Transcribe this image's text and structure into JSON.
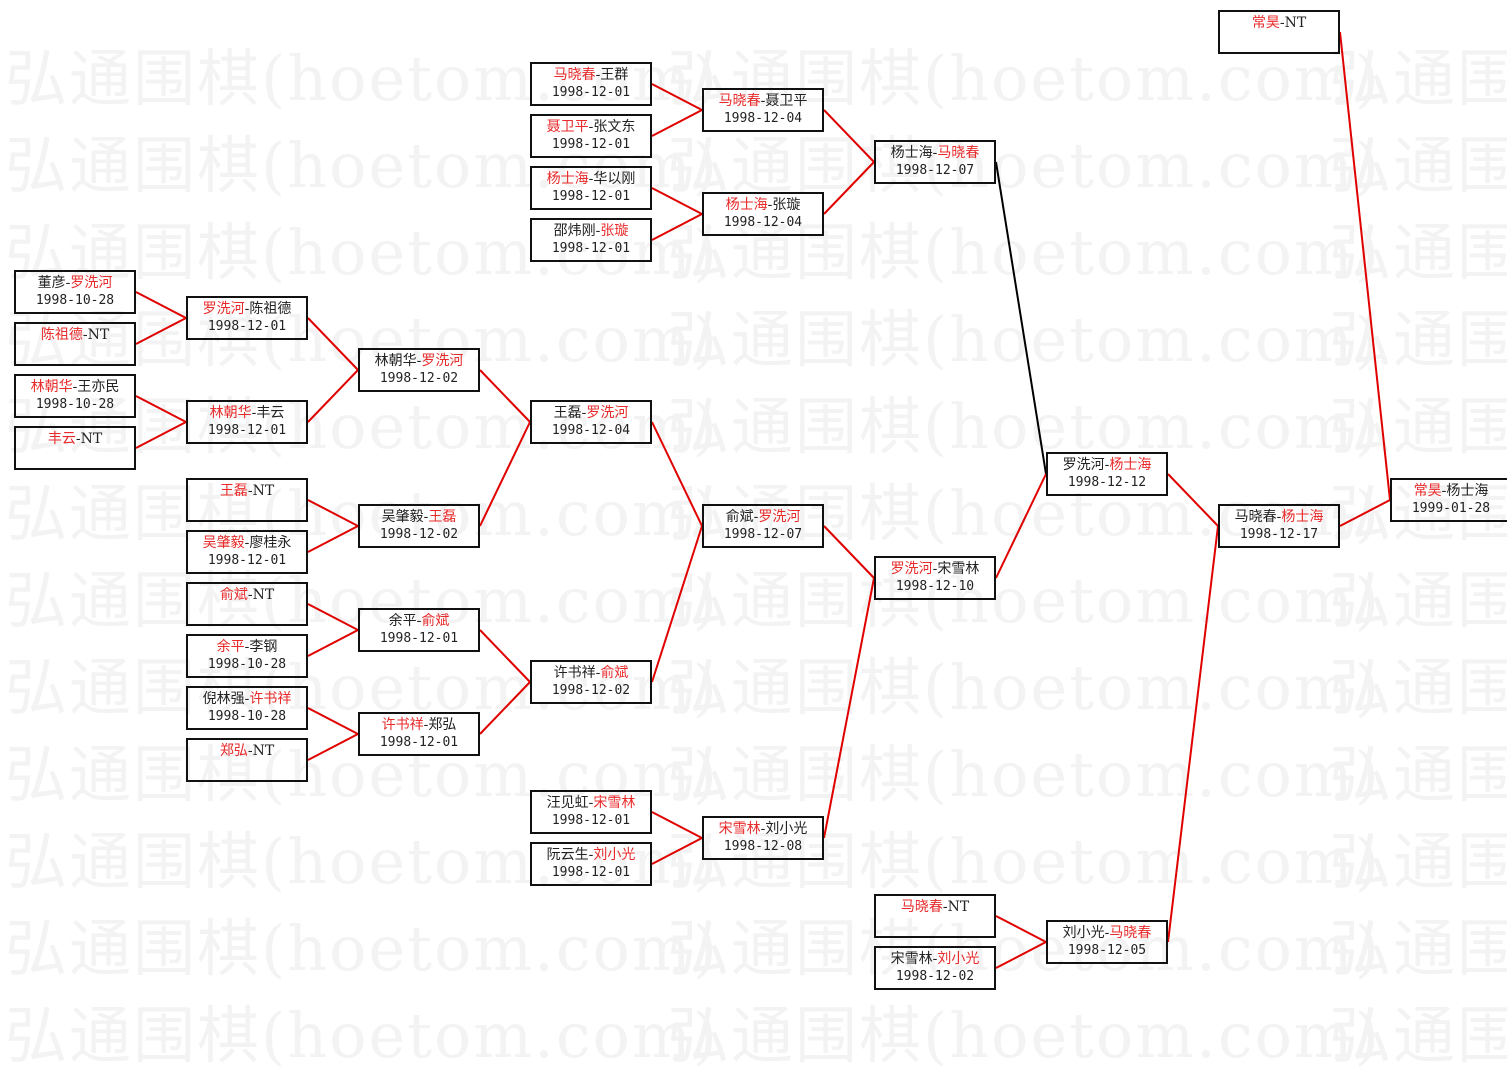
{
  "watermark": "弘通围棋(hoetom.com)",
  "colors": {
    "winner_text": "#e82a2a",
    "advance_line": "#e00000",
    "other_line": "#000000",
    "box_border": "#111111"
  },
  "matches": [
    {
      "p1": "董彦",
      "p2": "罗洗河",
      "winner": 2,
      "date": "1998-10-28"
    },
    {
      "p1": "陈祖德",
      "p2": "NT",
      "winner": 1,
      "date": ""
    },
    {
      "p1": "林朝华",
      "p2": "王亦民",
      "winner": 1,
      "date": "1998-10-28"
    },
    {
      "p1": "丰云",
      "p2": "NT",
      "winner": 1,
      "date": ""
    },
    {
      "p1": "罗洗河",
      "p2": "陈祖德",
      "winner": 1,
      "date": "1998-12-01"
    },
    {
      "p1": "林朝华",
      "p2": "丰云",
      "winner": 1,
      "date": "1998-12-01"
    },
    {
      "p1": "王磊",
      "p2": "NT",
      "winner": 1,
      "date": ""
    },
    {
      "p1": "吴肇毅",
      "p2": "廖桂永",
      "winner": 1,
      "date": "1998-12-01"
    },
    {
      "p1": "俞斌",
      "p2": "NT",
      "winner": 1,
      "date": ""
    },
    {
      "p1": "余平",
      "p2": "李钢",
      "winner": 1,
      "date": "1998-10-28"
    },
    {
      "p1": "倪林强",
      "p2": "许书祥",
      "winner": 2,
      "date": "1998-10-28"
    },
    {
      "p1": "郑弘",
      "p2": "NT",
      "winner": 1,
      "date": ""
    },
    {
      "p1": "林朝华",
      "p2": "罗洗河",
      "winner": 2,
      "date": "1998-12-02"
    },
    {
      "p1": "吴肇毅",
      "p2": "王磊",
      "winner": 2,
      "date": "1998-12-02"
    },
    {
      "p1": "余平",
      "p2": "俞斌",
      "winner": 2,
      "date": "1998-12-01"
    },
    {
      "p1": "许书祥",
      "p2": "郑弘",
      "winner": 1,
      "date": "1998-12-01"
    },
    {
      "p1": "马晓春",
      "p2": "王群",
      "winner": 1,
      "date": "1998-12-01"
    },
    {
      "p1": "聂卫平",
      "p2": "张文东",
      "winner": 1,
      "date": "1998-12-01"
    },
    {
      "p1": "杨士海",
      "p2": "华以刚",
      "winner": 1,
      "date": "1998-12-01"
    },
    {
      "p1": "邵炜刚",
      "p2": "张璇",
      "winner": 2,
      "date": "1998-12-01"
    },
    {
      "p1": "王磊",
      "p2": "罗洗河",
      "winner": 2,
      "date": "1998-12-04"
    },
    {
      "p1": "许书祥",
      "p2": "俞斌",
      "winner": 2,
      "date": "1998-12-02"
    },
    {
      "p1": "汪见虹",
      "p2": "宋雪林",
      "winner": 2,
      "date": "1998-12-01"
    },
    {
      "p1": "阮云生",
      "p2": "刘小光",
      "winner": 2,
      "date": "1998-12-01"
    },
    {
      "p1": "马晓春",
      "p2": "聂卫平",
      "winner": 1,
      "date": "1998-12-04"
    },
    {
      "p1": "杨士海",
      "p2": "张璇",
      "winner": 1,
      "date": "1998-12-04"
    },
    {
      "p1": "俞斌",
      "p2": "罗洗河",
      "winner": 2,
      "date": "1998-12-07"
    },
    {
      "p1": "宋雪林",
      "p2": "刘小光",
      "winner": 1,
      "date": "1998-12-08"
    },
    {
      "p1": "杨士海",
      "p2": "马晓春",
      "winner": 2,
      "date": "1998-12-07"
    },
    {
      "p1": "罗洗河",
      "p2": "宋雪林",
      "winner": 1,
      "date": "1998-12-10"
    },
    {
      "p1": "马晓春",
      "p2": "NT",
      "winner": 1,
      "date": ""
    },
    {
      "p1": "宋雪林",
      "p2": "刘小光",
      "winner": 2,
      "date": "1998-12-02"
    },
    {
      "p1": "罗洗河",
      "p2": "杨士海",
      "winner": 2,
      "date": "1998-12-12"
    },
    {
      "p1": "刘小光",
      "p2": "马晓春",
      "winner": 2,
      "date": "1998-12-05"
    },
    {
      "p1": "常昊",
      "p2": "NT",
      "winner": 1,
      "date": ""
    },
    {
      "p1": "马晓春",
      "p2": "杨士海",
      "winner": 2,
      "date": "1998-12-17"
    },
    {
      "p1": "常昊",
      "p2": "杨士海",
      "winner": 1,
      "date": "1999-01-28"
    }
  ],
  "links": [
    {
      "from": 0,
      "to": 4,
      "color": "red"
    },
    {
      "from": 1,
      "to": 4,
      "color": "red"
    },
    {
      "from": 2,
      "to": 5,
      "color": "red"
    },
    {
      "from": 3,
      "to": 5,
      "color": "red"
    },
    {
      "from": 4,
      "to": 12,
      "color": "red"
    },
    {
      "from": 5,
      "to": 12,
      "color": "red"
    },
    {
      "from": 6,
      "to": 13,
      "color": "red"
    },
    {
      "from": 7,
      "to": 13,
      "color": "red"
    },
    {
      "from": 8,
      "to": 14,
      "color": "red"
    },
    {
      "from": 9,
      "to": 14,
      "color": "red"
    },
    {
      "from": 10,
      "to": 15,
      "color": "red"
    },
    {
      "from": 11,
      "to": 15,
      "color": "red"
    },
    {
      "from": 12,
      "to": 20,
      "color": "red"
    },
    {
      "from": 13,
      "to": 20,
      "color": "red"
    },
    {
      "from": 14,
      "to": 21,
      "color": "red"
    },
    {
      "from": 15,
      "to": 21,
      "color": "red"
    },
    {
      "from": 16,
      "to": 24,
      "color": "red"
    },
    {
      "from": 17,
      "to": 24,
      "color": "red"
    },
    {
      "from": 18,
      "to": 25,
      "color": "red"
    },
    {
      "from": 19,
      "to": 25,
      "color": "red"
    },
    {
      "from": 20,
      "to": 26,
      "color": "red"
    },
    {
      "from": 21,
      "to": 26,
      "color": "red"
    },
    {
      "from": 22,
      "to": 27,
      "color": "red"
    },
    {
      "from": 23,
      "to": 27,
      "color": "red"
    },
    {
      "from": 24,
      "to": 28,
      "color": "red"
    },
    {
      "from": 25,
      "to": 28,
      "color": "red"
    },
    {
      "from": 26,
      "to": 29,
      "color": "red"
    },
    {
      "from": 27,
      "to": 29,
      "color": "red"
    },
    {
      "from": 28,
      "to": 32,
      "color": "black"
    },
    {
      "from": 29,
      "to": 32,
      "color": "red"
    },
    {
      "from": 30,
      "to": 33,
      "color": "red"
    },
    {
      "from": 31,
      "to": 33,
      "color": "red"
    },
    {
      "from": 32,
      "to": 35,
      "color": "red"
    },
    {
      "from": 33,
      "to": 35,
      "color": "red"
    },
    {
      "from": 34,
      "to": 36,
      "color": "red"
    },
    {
      "from": 35,
      "to": 36,
      "color": "red"
    }
  ]
}
